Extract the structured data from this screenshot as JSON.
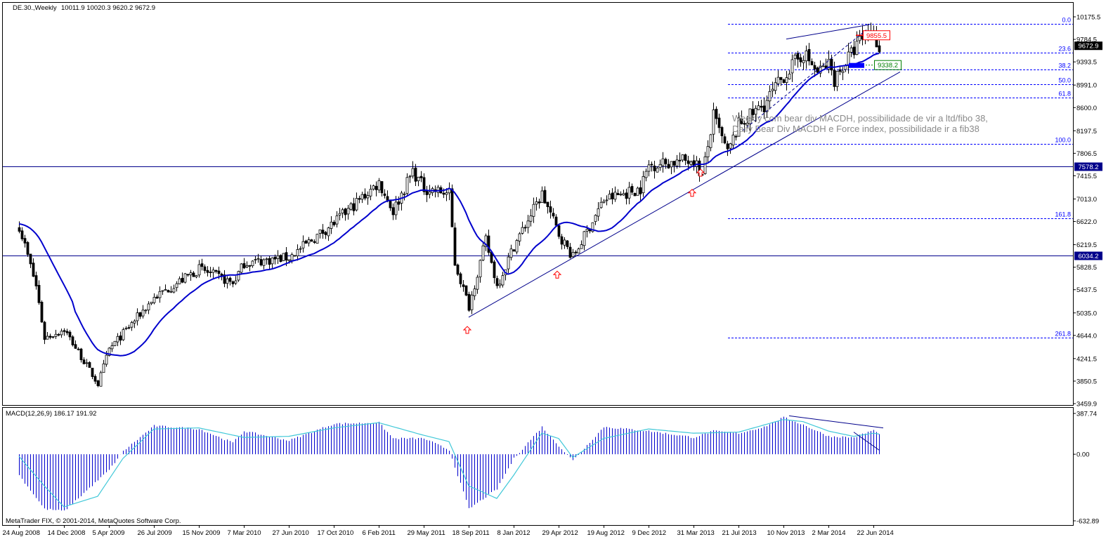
{
  "header": {
    "symbol_label": "DE.30.,Weekly",
    "ohlc_text": "10011.9 10020.3 9620.2 9672.9"
  },
  "indicator": {
    "label": "MACD(12,26,9) 186.17 191.92"
  },
  "footer": {
    "copyright": "MetaTrader FIX, © 2001-2014, MetaQuotes Software Corp."
  },
  "annotation": {
    "line1": "Weekly com bear div MACDH, possibilidade de vir a ltd/fibo 38,",
    "line2": "Daily Bear Div MACDH e Force index, possibilidade ir a fib38"
  },
  "colors": {
    "candle": "#000000",
    "moving_average": "#0000cd",
    "level_line": "#00008b",
    "fib": "#0000ff",
    "macd_hist": "#0000cd",
    "macd_signal": "#40c8d8",
    "arrow": "#ff0000",
    "price_tag_bg": "#000000",
    "level_tag_bg": "#00008b",
    "red_label": "#ff0000",
    "green_label": "#008000"
  },
  "chart_data": [
    {
      "type": "candlestick",
      "timeframe": "Weekly",
      "ylim": [
        3459.9,
        10175.5
      ],
      "y_ticks": [
        "10175.5",
        "9784.5",
        "9393.5",
        "8991.0",
        "8600.0",
        "8197.5",
        "7806.5",
        "7415.5",
        "7013.0",
        "6622.0",
        "6219.5",
        "5828.5",
        "5437.5",
        "5035.0",
        "4644.0",
        "4241.5",
        "3850.5",
        "3459.9"
      ],
      "x_ticks": [
        "24 Aug 2008",
        "14 Dec 2008",
        "5 Apr 2009",
        "26 Jul 2009",
        "15 Nov 2009",
        "7 Mar 2010",
        "27 Jun 2010",
        "17 Oct 2010",
        "6 Feb 2011",
        "29 May 2011",
        "18 Sep 2011",
        "8 Jan 2012",
        "29 Apr 2012",
        "19 Aug 2012",
        "9 Dec 2012",
        "31 Mar 2013",
        "21 Jul 2013",
        "10 Nov 2013",
        "2 Mar 2014",
        "22 Jun 2014"
      ],
      "close_anchors": [
        [
          "24 Aug 2008",
          6550
        ],
        [
          "5 Oct 2008",
          5500
        ],
        [
          "26 Oct 2008",
          4600
        ],
        [
          "14 Dec 2008",
          4750
        ],
        [
          "8 Mar 2009",
          3800
        ],
        [
          "5 Apr 2009",
          4400
        ],
        [
          "26 Jul 2009",
          5300
        ],
        [
          "15 Nov 2009",
          5800
        ],
        [
          "7 Feb 2010",
          5550
        ],
        [
          "7 Mar 2010",
          5900
        ],
        [
          "27 Jun 2010",
          6000
        ],
        [
          "17 Oct 2010",
          6600
        ],
        [
          "6 Feb 2011",
          7300
        ],
        [
          "13 Mar 2011",
          6800
        ],
        [
          "1 May 2011",
          7500
        ],
        [
          "29 May 2011",
          7200
        ],
        [
          "31 Jul 2011",
          7100
        ],
        [
          "14 Aug 2011",
          5900
        ],
        [
          "18 Sep 2011",
          5150
        ],
        [
          "30 Oct 2011",
          6300
        ],
        [
          "27 Nov 2011",
          5500
        ],
        [
          "8 Jan 2012",
          6200
        ],
        [
          "18 Mar 2012",
          7100
        ],
        [
          "29 Apr 2012",
          6400
        ],
        [
          "3 Jun 2012",
          6000
        ],
        [
          "19 Aug 2012",
          7000
        ],
        [
          "18 Nov 2012",
          7200
        ],
        [
          "9 Dec 2012",
          7600
        ],
        [
          "31 Mar 2013",
          7700
        ],
        [
          "21 Apr 2013",
          7400
        ],
        [
          "19 May 2013",
          8450
        ],
        [
          "23 Jun 2013",
          7800
        ],
        [
          "21 Jul 2013",
          8300
        ],
        [
          "22 Sep 2013",
          8650
        ],
        [
          "10 Nov 2013",
          9150
        ],
        [
          "29 Dec 2013",
          9550
        ],
        [
          "2 Feb 2014",
          9200
        ],
        [
          "2 Mar 2014",
          9350
        ],
        [
          "16 Mar 2014",
          9100
        ],
        [
          "4 May 2014",
          9600
        ],
        [
          "8 Jun 2014",
          9950
        ],
        [
          "22 Jun 2014",
          9850
        ],
        [
          "6 Jul 2014",
          9672.9
        ]
      ],
      "last_price": "9672.9",
      "horizontal_levels": [
        "7578.2",
        "6034.2"
      ],
      "fibonacci": {
        "levels": [
          "0.0",
          "23.6",
          "38.2",
          "50.0",
          "61.8",
          "100.0",
          "161.8",
          "261.8"
        ],
        "level_values": [
          10050,
          9560,
          9260,
          9010,
          8770,
          7970,
          6680,
          4600
        ]
      },
      "labels": {
        "upper": "9855.5",
        "lower": "9338.2"
      },
      "moving_average": "blue line",
      "annotations": [
        "trendline under swing lows",
        "red up-arrows at swing lows"
      ]
    },
    {
      "type": "bar",
      "name": "MACD(12,26,9)",
      "ylim": [
        -632.89,
        387.74
      ],
      "y_ticks": [
        "387.74",
        "0.00",
        "-632.89"
      ],
      "hist_anchors": [
        [
          "24 Aug 2008",
          -200
        ],
        [
          "26 Oct 2008",
          -520
        ],
        [
          "14 Dec 2008",
          -540
        ],
        [
          "5 Apr 2009",
          -150
        ],
        [
          "10 May 2009",
          30
        ],
        [
          "26 Jul 2009",
          270
        ],
        [
          "15 Nov 2009",
          240
        ],
        [
          "7 Feb 2010",
          110
        ],
        [
          "7 Mar 2010",
          220
        ],
        [
          "27 Jun 2010",
          130
        ],
        [
          "17 Oct 2010",
          290
        ],
        [
          "6 Feb 2011",
          300
        ],
        [
          "13 Mar 2011",
          150
        ],
        [
          "29 May 2011",
          150
        ],
        [
          "31 Jul 2011",
          40
        ],
        [
          "18 Sep 2011",
          -520
        ],
        [
          "27 Nov 2011",
          -330
        ],
        [
          "8 Jan 2012",
          -40
        ],
        [
          "18 Mar 2012",
          260
        ],
        [
          "29 Apr 2012",
          80
        ],
        [
          "3 Jun 2012",
          -60
        ],
        [
          "19 Aug 2012",
          260
        ],
        [
          "9 Dec 2012",
          220
        ],
        [
          "31 Mar 2013",
          160
        ],
        [
          "19 May 2013",
          220
        ],
        [
          "21 Jul 2013",
          200
        ],
        [
          "22 Sep 2013",
          260
        ],
        [
          "10 Nov 2013",
          350
        ],
        [
          "29 Dec 2013",
          280
        ],
        [
          "2 Mar 2014",
          170
        ],
        [
          "4 May 2014",
          160
        ],
        [
          "22 Jun 2014",
          230
        ],
        [
          "6 Jul 2014",
          186.17
        ]
      ],
      "signal_anchors": [
        [
          "24 Aug 2008",
          -20
        ],
        [
          "26 Oct 2008",
          -300
        ],
        [
          "14 Dec 2008",
          -500
        ],
        [
          "8 Mar 2009",
          -400
        ],
        [
          "10 May 2009",
          -40
        ],
        [
          "26 Jul 2009",
          240
        ],
        [
          "15 Nov 2009",
          250
        ],
        [
          "7 Mar 2010",
          160
        ],
        [
          "27 Jun 2010",
          170
        ],
        [
          "17 Oct 2010",
          250
        ],
        [
          "6 Feb 2011",
          300
        ],
        [
          "29 May 2011",
          180
        ],
        [
          "31 Jul 2011",
          120
        ],
        [
          "18 Sep 2011",
          -300
        ],
        [
          "27 Nov 2011",
          -420
        ],
        [
          "8 Jan 2012",
          -200
        ],
        [
          "18 Mar 2012",
          200
        ],
        [
          "29 Apr 2012",
          150
        ],
        [
          "3 Jun 2012",
          -30
        ],
        [
          "19 Aug 2012",
          150
        ],
        [
          "9 Dec 2012",
          240
        ],
        [
          "31 Mar 2013",
          200
        ],
        [
          "21 Jul 2013",
          210
        ],
        [
          "10 Nov 2013",
          330
        ],
        [
          "29 Dec 2013",
          310
        ],
        [
          "2 Mar 2014",
          220
        ],
        [
          "4 May 2014",
          170
        ],
        [
          "22 Jun 2014",
          200
        ],
        [
          "6 Jul 2014",
          191.92
        ]
      ]
    }
  ]
}
